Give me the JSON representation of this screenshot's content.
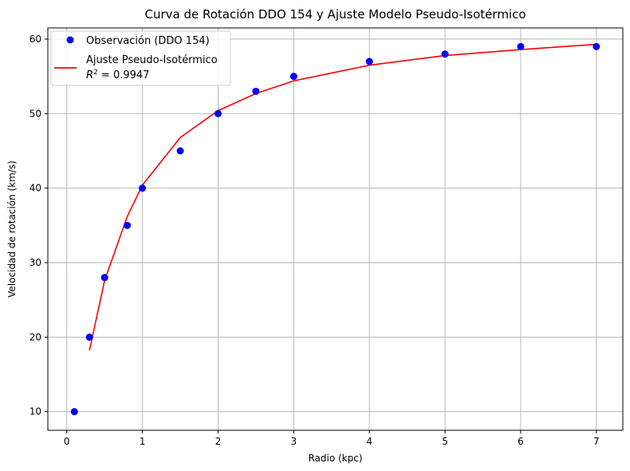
{
  "chart_data": {
    "type": "scatter",
    "title": "Curva de Rotación DDO 154 y Ajuste Modelo Pseudo-Isotérmico",
    "xlabel": "Radio (kpc)",
    "ylabel": "Velocidad de rotación (km/s)",
    "xlim": [
      -0.25,
      7.35
    ],
    "ylim": [
      7.5,
      61.5
    ],
    "xticks": [
      0,
      1,
      2,
      3,
      4,
      5,
      6,
      7
    ],
    "yticks": [
      10,
      20,
      30,
      40,
      50,
      60
    ],
    "grid": true,
    "legend_position": "top-left",
    "series": [
      {
        "name": "Observación (DDO 154)",
        "kind": "points",
        "color": "#0000ff",
        "x": [
          0.1,
          0.3,
          0.5,
          0.8,
          1.0,
          1.5,
          2.0,
          2.5,
          3.0,
          4.0,
          5.0,
          6.0,
          7.0
        ],
        "y": [
          10,
          20,
          28,
          35,
          40,
          45,
          50,
          53,
          55,
          57,
          58,
          59,
          59
        ]
      },
      {
        "name": "Ajuste Pseudo-Isotérmico",
        "kind": "line",
        "color": "#ff0000",
        "x": [
          0.3,
          0.5,
          0.8,
          1.0,
          1.5,
          2.0,
          2.5,
          3.0,
          4.0,
          5.0,
          6.0,
          7.0
        ],
        "y": [
          18.2,
          27.6,
          36.2,
          40.4,
          46.8,
          50.4,
          52.7,
          54.4,
          56.5,
          57.8,
          58.6,
          59.3
        ]
      }
    ],
    "legend_r2_label": "R",
    "legend_r2_value": " = 0.9947"
  }
}
